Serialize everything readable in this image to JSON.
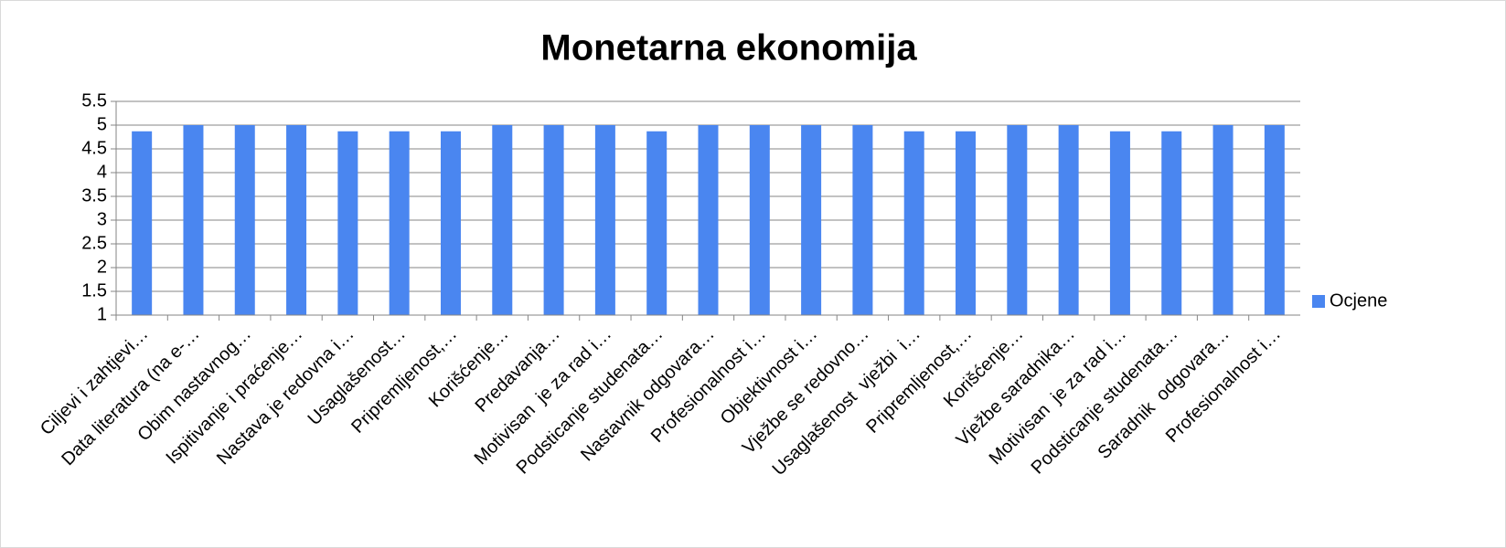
{
  "chart_data": {
    "type": "bar",
    "title": "Monetarna ekonomija",
    "categories": [
      "Ciljevi i zahtjevi…",
      "Data literatura (na e-…",
      "Obim nastavnog…",
      "Ispitivanje i praćenje…",
      "Nastava je redovna i…",
      "Usaglašenost…",
      "Pripremljenost,…",
      "Korišćenje…",
      "Predavanja…",
      "Motivisan  je za rad i…",
      "Podsticanje studenata…",
      "Nastavnik odgovara…",
      "Profesionalnost i…",
      "Objektivnost i…",
      "Vježbe se redovno…",
      "Usaglašenost  vježbi  i…",
      "Pripremljenost,…",
      "Korišćenje…",
      "Vježbe saradnika…",
      "Motivisan  je za rad i…",
      "Podsticanje studenata…",
      "Saradnik  odgovara…",
      "Profesionalnost i…"
    ],
    "series": [
      {
        "name": "Ocjene",
        "color": "#4a86f0",
        "values": [
          4.87,
          5,
          5,
          5,
          4.87,
          4.87,
          4.87,
          5,
          5,
          5,
          4.87,
          5,
          5,
          5,
          5,
          4.87,
          4.87,
          5,
          5,
          4.87,
          4.87,
          5,
          5
        ]
      }
    ],
    "ylim": [
      1,
      5.5
    ],
    "yticks": [
      1,
      1.5,
      2,
      2.5,
      3,
      3.5,
      4,
      4.5,
      5,
      5.5
    ],
    "grid": true,
    "legend": "right"
  }
}
